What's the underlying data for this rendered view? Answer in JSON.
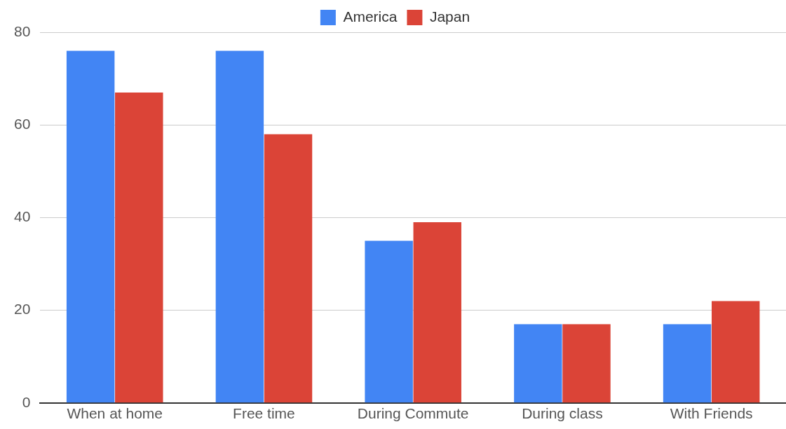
{
  "chart_data": {
    "type": "bar",
    "categories": [
      "When at home",
      "Free time",
      "During Commute",
      "During class",
      "With Friends"
    ],
    "series": [
      {
        "name": "America",
        "color": "#4285f4",
        "values": [
          76,
          76,
          35,
          17,
          17
        ]
      },
      {
        "name": "Japan",
        "color": "#db4437",
        "values": [
          67,
          58,
          39,
          17,
          22
        ]
      }
    ],
    "ylim": [
      0,
      80
    ],
    "yticks": [
      0,
      20,
      40,
      60,
      80
    ],
    "grid": "y",
    "legend": "top"
  }
}
